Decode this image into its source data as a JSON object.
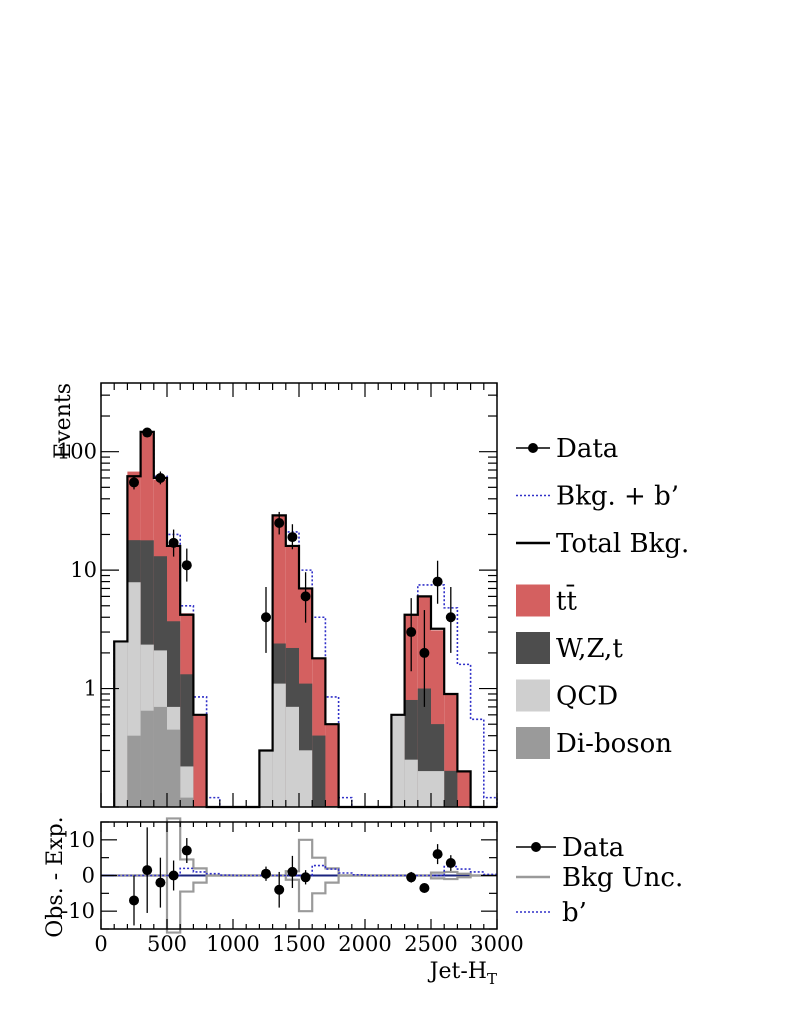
{
  "chart_data": [
    {
      "type": "histogram",
      "panel": "main",
      "ylabel": "Events",
      "yscale": "log",
      "ylim": [
        0.1,
        380
      ],
      "yticks": [
        {
          "value": 1,
          "label": "1"
        },
        {
          "value": 10,
          "label": "10"
        },
        {
          "value": 100,
          "label": "100"
        }
      ],
      "xlim": [
        0,
        3000
      ],
      "bin_edges": [
        100,
        200,
        300,
        400,
        500,
        600,
        700,
        800,
        900,
        1000,
        1100,
        1200,
        1300,
        1400,
        1500,
        1600,
        1700,
        1800,
        1900,
        2000,
        2100,
        2200,
        2300,
        2400,
        2500,
        2600,
        2700,
        2800,
        2900,
        3000
      ],
      "stack": [
        {
          "name": "Di-boson",
          "color": "#9a9a9a",
          "values": [
            0.001,
            0.4,
            0.65,
            0.7,
            0.45,
            0.12,
            0.001,
            0.001,
            0.001,
            0.001,
            0.001,
            0.001,
            0.001,
            0.001,
            0.001,
            0.001,
            0.001,
            0.001,
            0.001,
            0.001,
            0.001,
            0.001,
            0.001,
            0.001,
            0.001,
            0.001,
            0.001,
            0.001,
            0.001
          ]
        },
        {
          "name": "QCD",
          "color": "#cfcfcf",
          "values": [
            2.5,
            7.5,
            1.7,
            1.4,
            0.25,
            0.1,
            0.001,
            0.001,
            0.001,
            0.001,
            0.001,
            0.3,
            1.1,
            0.7,
            0.3,
            0.1,
            0.001,
            0.001,
            0.001,
            0.001,
            0.001,
            0.6,
            0.25,
            0.2,
            0.2,
            0.001,
            0.001,
            0.001,
            0.001
          ]
        },
        {
          "name": "W,Z,t",
          "color": "#4d4d4d",
          "values": [
            0.001,
            10,
            15.5,
            11,
            3,
            1.1,
            0.001,
            0.001,
            0.001,
            0.001,
            0.001,
            0.001,
            1.3,
            1.5,
            0.8,
            0.3,
            0.1,
            0.001,
            0.001,
            0.001,
            0.001,
            0.001,
            0.55,
            0.8,
            0.3,
            0.2,
            0.001,
            0.001,
            0.001
          ]
        },
        {
          "name": "tt̄",
          "color": "#d46060",
          "values": [
            0.001,
            50,
            128,
            45,
            12,
            3,
            0.6,
            0.001,
            0.001,
            0.001,
            0.001,
            0.001,
            27,
            14,
            6,
            1.4,
            0.4,
            0.001,
            0.001,
            0.001,
            0.001,
            0.001,
            3.4,
            5,
            2.6,
            0.7,
            0.2,
            0.001,
            0.001
          ]
        }
      ],
      "total_bkg": [
        2.5,
        62,
        147,
        60,
        16,
        4.2,
        0.6,
        0.1,
        0.1,
        0.1,
        0.1,
        0.3,
        29,
        16,
        7,
        1.8,
        0.5,
        0.1,
        0.1,
        0.1,
        0.1,
        0.6,
        4.2,
        6,
        3.2,
        0.9,
        0.2,
        0.1,
        0.1
      ],
      "bkg_plus_bprime": [
        2.5,
        62,
        147,
        62,
        20,
        5,
        0.85,
        0.12,
        0.1,
        0.1,
        0.1,
        0.3,
        29,
        21,
        10,
        4,
        0.85,
        0.12,
        0.1,
        0.1,
        0.1,
        0.6,
        4.2,
        7.5,
        7.5,
        4.8,
        1.6,
        0.55,
        0.12
      ],
      "data": {
        "x": [
          250,
          350,
          450,
          550,
          650,
          1250,
          1350,
          1450,
          1550,
          2350,
          2450,
          2550,
          2650
        ],
        "y": [
          55,
          145,
          60,
          17,
          11,
          4,
          25,
          19,
          6,
          3,
          2,
          8,
          4
        ],
        "yerr_lo": [
          7,
          12,
          7,
          4,
          3,
          2,
          5,
          4,
          2.4,
          1.6,
          1.3,
          2.8,
          2
        ],
        "yerr_hi": [
          8,
          13,
          8,
          5,
          4.2,
          3.2,
          6,
          5.4,
          3.6,
          2.8,
          2.6,
          4,
          3.2
        ]
      },
      "legend": [
        {
          "label": "Data",
          "style": "marker"
        },
        {
          "label": "Bkg. + b’",
          "style": "dotted-line",
          "color": "#3030c8"
        },
        {
          "label": "Total Bkg.",
          "style": "line",
          "color": "#000000"
        },
        {
          "label": "tt̄",
          "style": "fill",
          "color": "#d46060"
        },
        {
          "label": "W,Z,t",
          "style": "fill",
          "color": "#4d4d4d"
        },
        {
          "label": "QCD",
          "style": "fill",
          "color": "#cfcfcf"
        },
        {
          "label": "Di-boson",
          "style": "fill",
          "color": "#9a9a9a"
        }
      ]
    },
    {
      "type": "histogram",
      "panel": "ratio",
      "ylabel": "Obs. - Exp.",
      "xlabel": "Jet-H",
      "xlabel_sub": "T",
      "ylim": [
        -15,
        15
      ],
      "yticks": [
        {
          "value": -10,
          "label": "-10"
        },
        {
          "value": 0,
          "label": "0"
        },
        {
          "value": 10,
          "label": "10"
        }
      ],
      "xlim": [
        0,
        3000
      ],
      "xticks": [
        {
          "value": 0,
          "label": "0"
        },
        {
          "value": 500,
          "label": "500"
        },
        {
          "value": 1000,
          "label": "1000"
        },
        {
          "value": 1500,
          "label": "1500"
        },
        {
          "value": 2000,
          "label": "2000"
        },
        {
          "value": 2500,
          "label": "2500"
        },
        {
          "value": 3000,
          "label": "3000"
        }
      ],
      "zero_line_color": "#1a237e",
      "bkg_unc": [
        0,
        0,
        0,
        0,
        16,
        4.5,
        2,
        0,
        0,
        0,
        0,
        0,
        0,
        1.2,
        10,
        5,
        2,
        0,
        0,
        0,
        0,
        0,
        0,
        0,
        0.8,
        1,
        0.5,
        0,
        0
      ],
      "bprime": [
        0,
        0,
        0,
        0,
        0,
        2,
        1,
        0.5,
        0.1,
        0,
        0,
        0,
        0,
        0,
        0,
        2.8,
        1.8,
        0.7,
        0.2,
        0,
        0,
        0,
        0,
        0,
        0,
        2.5,
        1.8,
        1,
        0.3
      ],
      "data": {
        "x": [
          250,
          350,
          450,
          550,
          650,
          1250,
          1350,
          1450,
          1550,
          2350,
          2450,
          2550,
          2650
        ],
        "y": [
          -7,
          1.5,
          -2,
          0,
          7,
          0.5,
          -4,
          1,
          -0.5,
          -0.5,
          -3.5,
          6,
          3.5
        ],
        "yerr": [
          7,
          12,
          7,
          4.2,
          3.5,
          2,
          5,
          4.5,
          2,
          1.5,
          1.2,
          2.8,
          2.2
        ]
      },
      "legend": [
        {
          "label": "Data",
          "style": "marker"
        },
        {
          "label": "Bkg Unc.",
          "style": "line",
          "color": "#9a9a9a"
        },
        {
          "label": "b’",
          "style": "dotted-line",
          "color": "#3030c8"
        }
      ]
    }
  ]
}
